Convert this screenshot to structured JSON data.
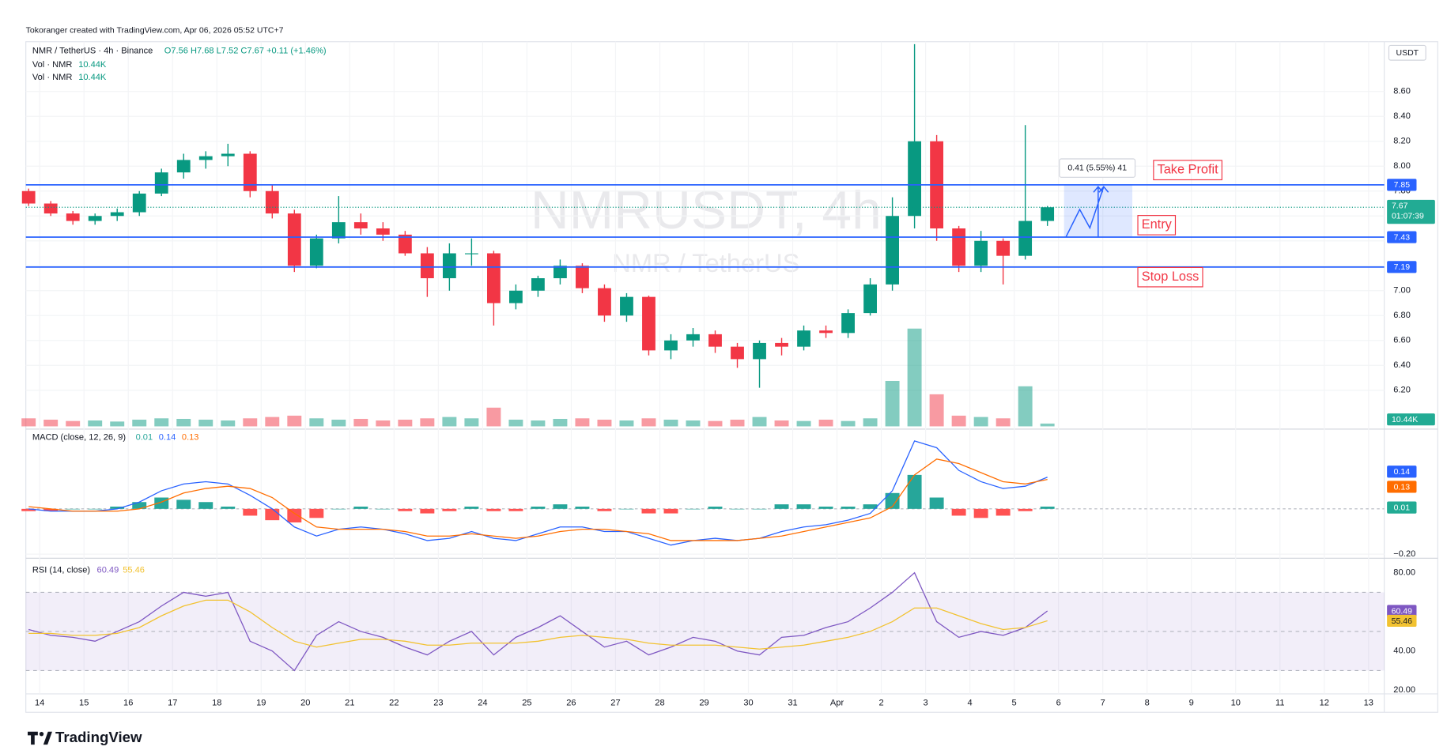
{
  "header": {
    "attribution": "Tokoranger created with TradingView.com, Apr 06, 2026 05:52 UTC+7",
    "symbol": "NMR / TetherUS · 4h · Binance",
    "ohlc": "O7.56  H7.68  L7.52  C7.67  +0.11 (+1.46%)",
    "volume_indicators": [
      {
        "name": "Vol · NMR",
        "value": "10.44K"
      },
      {
        "name": "Vol · NMR",
        "value": "10.44K"
      }
    ],
    "currency": "USDT",
    "countdown": "01:07:39",
    "brand": "TradingView",
    "watermark_title": "NMRUSDT, 4h",
    "watermark_subtitle": "NMR / TetherUS"
  },
  "chart_data": [
    {
      "type": "candlestick",
      "x": [
        -0.25,
        0.25,
        0.75,
        1.25,
        1.75,
        2.25,
        2.75,
        3.25,
        3.75,
        4.25,
        4.75,
        5.25,
        5.75,
        6.25,
        6.75,
        7.25,
        7.75,
        8.25,
        8.75,
        9.25,
        9.75,
        10.25,
        10.75,
        11.25,
        11.75,
        12.25,
        12.75,
        13.25,
        13.75,
        14.25,
        14.75,
        15.25,
        15.75,
        16.25,
        16.75,
        17.25,
        17.75,
        18.25,
        18.75,
        19.25,
        19.75,
        20.25,
        20.75,
        21.25,
        21.75,
        22.25,
        22.75
      ],
      "open": [
        7.8,
        7.7,
        7.62,
        7.56,
        7.6,
        7.63,
        7.78,
        7.95,
        8.05,
        8.08,
        8.1,
        7.8,
        7.62,
        7.2,
        7.42,
        7.55,
        7.5,
        7.45,
        7.3,
        7.1,
        7.3,
        7.3,
        6.9,
        7.0,
        7.1,
        7.2,
        7.02,
        6.8,
        6.95,
        6.52,
        6.6,
        6.65,
        6.55,
        6.45,
        6.58,
        6.55,
        6.68,
        6.66,
        6.82,
        7.05,
        7.6,
        8.2,
        7.5,
        7.2,
        7.4,
        7.28,
        7.56
      ],
      "high": [
        7.82,
        7.72,
        7.64,
        7.62,
        7.66,
        7.8,
        7.98,
        8.1,
        8.12,
        8.18,
        8.12,
        7.85,
        7.65,
        7.45,
        7.76,
        7.62,
        7.55,
        7.48,
        7.35,
        7.38,
        7.42,
        7.32,
        7.05,
        7.12,
        7.25,
        7.22,
        7.05,
        6.98,
        6.96,
        6.65,
        6.7,
        6.68,
        6.58,
        6.6,
        6.62,
        6.72,
        6.72,
        6.85,
        7.1,
        7.75,
        8.98,
        8.25,
        7.52,
        7.48,
        7.42,
        8.33,
        7.68
      ],
      "low": [
        7.68,
        7.6,
        7.53,
        7.53,
        7.56,
        7.6,
        7.76,
        7.9,
        7.98,
        8.0,
        7.75,
        7.58,
        7.15,
        7.18,
        7.38,
        7.45,
        7.4,
        7.28,
        6.95,
        7.0,
        7.2,
        6.72,
        6.85,
        6.95,
        7.05,
        6.98,
        6.75,
        6.75,
        6.48,
        6.45,
        6.55,
        6.5,
        6.38,
        6.22,
        6.48,
        6.52,
        6.62,
        6.62,
        6.8,
        7.0,
        7.5,
        7.4,
        7.15,
        7.15,
        7.05,
        7.25,
        7.52
      ],
      "close": [
        7.7,
        7.62,
        7.56,
        7.6,
        7.63,
        7.78,
        7.95,
        8.05,
        8.08,
        8.1,
        7.8,
        7.62,
        7.2,
        7.42,
        7.55,
        7.5,
        7.45,
        7.3,
        7.1,
        7.3,
        7.3,
        6.9,
        7.0,
        7.1,
        7.2,
        7.02,
        6.8,
        6.95,
        6.52,
        6.6,
        6.65,
        6.55,
        6.45,
        6.58,
        6.55,
        6.68,
        6.66,
        6.82,
        7.05,
        7.6,
        8.2,
        7.5,
        7.2,
        7.4,
        7.28,
        7.56,
        7.67
      ],
      "volume": [
        30000,
        25000,
        20000,
        22000,
        18000,
        25000,
        30000,
        28000,
        25000,
        22000,
        30000,
        35000,
        40000,
        30000,
        25000,
        28000,
        22000,
        25000,
        30000,
        35000,
        30000,
        70000,
        25000,
        22000,
        28000,
        30000,
        25000,
        22000,
        30000,
        25000,
        22000,
        20000,
        25000,
        35000,
        22000,
        20000,
        25000,
        20000,
        30000,
        170000,
        366000,
        120000,
        40000,
        35000,
        30000,
        150000,
        10440
      ],
      "volume_ylim": [
        0,
        1440000
      ],
      "up_color": "#089981",
      "down_color": "#f23645",
      "xlim": [
        -0.3125,
        30.354
      ],
      "xticks": [
        {
          "value": 0,
          "label": "14"
        },
        {
          "value": 1,
          "label": "15"
        },
        {
          "value": 2,
          "label": "16"
        },
        {
          "value": 3,
          "label": "17"
        },
        {
          "value": 4,
          "label": "18"
        },
        {
          "value": 5,
          "label": "19"
        },
        {
          "value": 6,
          "label": "20"
        },
        {
          "value": 7,
          "label": "21"
        },
        {
          "value": 8,
          "label": "22"
        },
        {
          "value": 9,
          "label": "23"
        },
        {
          "value": 10,
          "label": "24"
        },
        {
          "value": 11,
          "label": "25"
        },
        {
          "value": 12,
          "label": "26"
        },
        {
          "value": 13,
          "label": "27"
        },
        {
          "value": 14,
          "label": "28"
        },
        {
          "value": 15,
          "label": "29"
        },
        {
          "value": 16,
          "label": "30"
        },
        {
          "value": 17,
          "label": "31"
        },
        {
          "value": 18,
          "label": "Apr"
        },
        {
          "value": 19,
          "label": "2"
        },
        {
          "value": 20,
          "label": "3"
        },
        {
          "value": 21,
          "label": "4"
        },
        {
          "value": 22,
          "label": "5"
        },
        {
          "value": 23,
          "label": "6"
        },
        {
          "value": 24,
          "label": "7"
        },
        {
          "value": 25,
          "label": "8"
        },
        {
          "value": 26,
          "label": "9"
        },
        {
          "value": 27,
          "label": "10"
        },
        {
          "value": 28,
          "label": "11"
        },
        {
          "value": 29,
          "label": "12"
        },
        {
          "value": 30,
          "label": "13"
        }
      ],
      "ylim": [
        5.91,
        9.0
      ],
      "yticks": [
        {
          "value": 6.2,
          "label": "6.20"
        },
        {
          "value": 6.4,
          "label": "6.40"
        },
        {
          "value": 6.6,
          "label": "6.60"
        },
        {
          "value": 6.8,
          "label": "6.80"
        },
        {
          "value": 7,
          "label": "7.00"
        },
        {
          "value": 7.2,
          "label": "7.20"
        },
        {
          "value": 7.4,
          "label": "7.40"
        },
        {
          "value": 7.6,
          "label": "7.60"
        },
        {
          "value": 7.8,
          "label": "7.80"
        },
        {
          "value": 8,
          "label": "8.00"
        },
        {
          "value": 8.2,
          "label": "8.20"
        },
        {
          "value": 8.4,
          "label": "8.40"
        },
        {
          "value": 8.6,
          "label": "8.60"
        }
      ],
      "grid": true,
      "levels": [
        {
          "name": "Take Profit",
          "value": 7.85
        },
        {
          "name": "Entry",
          "value": 7.43
        },
        {
          "name": "Stop Loss",
          "value": 7.19
        }
      ],
      "level_color": "#2962ff",
      "level_label_color": "#f23645",
      "position_label": "0.41 (5.55%) 41"
    },
    {
      "type": "macd",
      "title": "MACD (close, 12, 26, 9)",
      "series": [
        {
          "color": "#2962ff",
          "values": [
            0,
            -0.01,
            -0.01,
            -0.01,
            0,
            0.03,
            0.08,
            0.11,
            0.12,
            0.11,
            0.06,
            0,
            -0.08,
            -0.12,
            -0.09,
            -0.08,
            -0.09,
            -0.11,
            -0.14,
            -0.13,
            -0.1,
            -0.13,
            -0.14,
            -0.11,
            -0.08,
            -0.08,
            -0.1,
            -0.1,
            -0.13,
            -0.16,
            -0.14,
            -0.13,
            -0.14,
            -0.13,
            -0.1,
            -0.08,
            -0.07,
            -0.05,
            -0.02,
            0.08,
            0.3,
            0.27,
            0.17,
            0.12,
            0.09,
            0.1,
            0.14
          ]
        },
        {
          "color": "#ff6d00",
          "values": [
            0.01,
            0,
            -0.01,
            -0.01,
            -0.01,
            0,
            0.03,
            0.07,
            0.09,
            0.1,
            0.09,
            0.05,
            -0.02,
            -0.08,
            -0.09,
            -0.09,
            -0.09,
            -0.1,
            -0.12,
            -0.12,
            -0.11,
            -0.12,
            -0.13,
            -0.12,
            -0.1,
            -0.09,
            -0.09,
            -0.1,
            -0.11,
            -0.14,
            -0.14,
            -0.14,
            -0.14,
            -0.13,
            -0.12,
            -0.1,
            -0.08,
            -0.06,
            -0.04,
            0.01,
            0.15,
            0.22,
            0.2,
            0.16,
            0.12,
            0.11,
            0.13
          ]
        },
        {
          "type": "histogram",
          "color": "#26a69a",
          "color_down": "#ff5252",
          "values": [
            -0.01,
            -0.01,
            0,
            0,
            0.01,
            0.03,
            0.05,
            0.04,
            0.03,
            0.01,
            -0.03,
            -0.05,
            -0.06,
            -0.04,
            0,
            0.01,
            0,
            -0.01,
            -0.02,
            -0.01,
            0.01,
            -0.01,
            -0.01,
            0.01,
            0.02,
            0.01,
            -0.01,
            0,
            -0.02,
            -0.02,
            0,
            0.01,
            0,
            0,
            0.02,
            0.02,
            0.01,
            0.01,
            0.02,
            0.07,
            0.15,
            0.05,
            -0.03,
            -0.04,
            -0.03,
            -0.01,
            0.01
          ]
        }
      ],
      "ylim": [
        -0.21,
        0.34
      ],
      "yticks": [
        {
          "value": -0.2,
          "label": "−0.20"
        }
      ]
    },
    {
      "type": "line",
      "title": "RSI (14, close)",
      "series": [
        {
          "color": "#7e57c2",
          "values": [
            51,
            48,
            47,
            45,
            50,
            55,
            63,
            70,
            68,
            70,
            45,
            40,
            30,
            48,
            55,
            50,
            47,
            42,
            38,
            45,
            50,
            38,
            47,
            52,
            58,
            50,
            42,
            45,
            38,
            42,
            47,
            45,
            40,
            38,
            47,
            48,
            52,
            55,
            62,
            70,
            80,
            55,
            47,
            50,
            48,
            52,
            60.49
          ]
        },
        {
          "color": "#f2c230",
          "values": [
            49,
            49,
            48,
            48,
            49,
            52,
            58,
            63,
            66,
            66,
            60,
            52,
            45,
            42,
            44,
            46,
            46,
            45,
            43,
            43,
            44,
            44,
            44,
            45,
            47,
            48,
            47,
            46,
            44,
            43,
            43,
            43,
            42,
            41,
            42,
            43,
            45,
            47,
            50,
            55,
            62,
            62,
            58,
            54,
            51,
            52,
            55.46
          ]
        }
      ],
      "band": [
        30,
        70
      ],
      "midline": 50,
      "ylim": [
        18.1,
        86.0
      ],
      "yticks": [
        {
          "value": 20,
          "label": "20.00"
        },
        {
          "value": 40,
          "label": "40.00"
        },
        {
          "value": 80,
          "label": "80.00"
        }
      ]
    }
  ]
}
